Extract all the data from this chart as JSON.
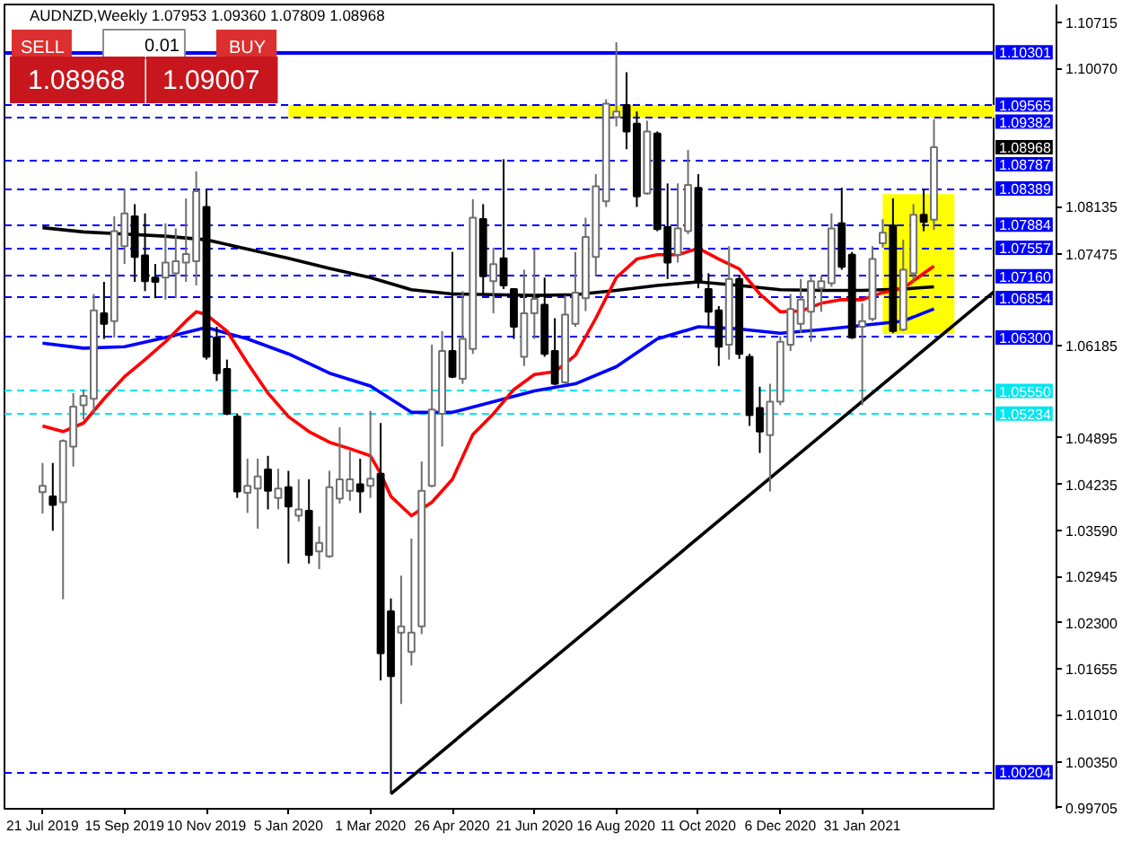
{
  "chart_data": {
    "type": "candlestick",
    "title": "AUDNZD,Weekly 1.07953 1.09360 1.07809 1.08968",
    "x": [
      "2019-07-21",
      "2019-07-28",
      "2019-08-04",
      "2019-08-11",
      "2019-08-18",
      "2019-08-25",
      "2019-09-01",
      "2019-09-08",
      "2019-09-15",
      "2019-09-22",
      "2019-09-29",
      "2019-10-06",
      "2019-10-13",
      "2019-10-20",
      "2019-10-27",
      "2019-11-03",
      "2019-11-10",
      "2019-11-17",
      "2019-11-24",
      "2019-12-01",
      "2019-12-08",
      "2019-12-15",
      "2019-12-22",
      "2019-12-29",
      "2020-01-05",
      "2020-01-12",
      "2020-01-19",
      "2020-01-26",
      "2020-02-02",
      "2020-02-09",
      "2020-02-16",
      "2020-02-23",
      "2020-03-01",
      "2020-03-08",
      "2020-03-15",
      "2020-03-22",
      "2020-03-29",
      "2020-04-05",
      "2020-04-12",
      "2020-04-19",
      "2020-04-26",
      "2020-05-03",
      "2020-05-10",
      "2020-05-17",
      "2020-05-24",
      "2020-05-31",
      "2020-06-07",
      "2020-06-14",
      "2020-06-21",
      "2020-06-28",
      "2020-07-05",
      "2020-07-12",
      "2020-07-19",
      "2020-07-26",
      "2020-08-02",
      "2020-08-09",
      "2020-08-16",
      "2020-08-23",
      "2020-08-30",
      "2020-09-06",
      "2020-09-13",
      "2020-09-20",
      "2020-09-27",
      "2020-10-04",
      "2020-10-11",
      "2020-10-18",
      "2020-10-25",
      "2020-11-01",
      "2020-11-08",
      "2020-11-15",
      "2020-11-22",
      "2020-11-29",
      "2020-12-06",
      "2020-12-13",
      "2020-12-20",
      "2020-12-27",
      "2021-01-03",
      "2021-01-10",
      "2021-01-17",
      "2021-01-24",
      "2021-01-31",
      "2021-02-07",
      "2021-02-14",
      "2021-02-21",
      "2021-02-28",
      "2021-03-07",
      "2021-03-14",
      "2021-03-21"
    ],
    "ohlc": [
      [
        1.0413,
        1.0454,
        1.0383,
        1.0422
      ],
      [
        1.0407,
        1.0454,
        1.0359,
        1.0395
      ],
      [
        1.0399,
        1.0487,
        1.0263,
        1.0485
      ],
      [
        1.0477,
        1.0552,
        1.0449,
        1.0533
      ],
      [
        1.0535,
        1.0557,
        1.0515,
        1.0548
      ],
      [
        1.0544,
        1.0691,
        1.0523,
        1.0668
      ],
      [
        1.0664,
        1.0708,
        1.0628,
        1.0649
      ],
      [
        1.0653,
        1.08,
        1.063,
        1.0779
      ],
      [
        1.0758,
        1.0838,
        1.0733,
        1.0804
      ],
      [
        1.08,
        1.0817,
        1.0708,
        1.0743
      ],
      [
        1.0745,
        1.0804,
        1.0695,
        1.0709
      ],
      [
        1.0714,
        1.0733,
        1.0685,
        1.0708
      ],
      [
        1.0714,
        1.079,
        1.0683,
        1.0735
      ],
      [
        1.072,
        1.0783,
        1.0685,
        1.0737
      ],
      [
        1.0735,
        1.0825,
        1.0708,
        1.0747
      ],
      [
        1.0737,
        1.0863,
        1.0703,
        1.0835
      ],
      [
        1.0813,
        1.0838,
        1.0599,
        1.0603
      ],
      [
        1.063,
        1.0645,
        1.0569,
        1.058
      ],
      [
        1.0586,
        1.0599,
        1.0521,
        1.0523
      ],
      [
        1.0519,
        1.0523,
        1.0405,
        1.0414
      ],
      [
        1.0412,
        1.046,
        1.0384,
        1.0422
      ],
      [
        1.0418,
        1.046,
        1.0362,
        1.0435
      ],
      [
        1.0445,
        1.0464,
        1.0389,
        1.0415
      ],
      [
        1.0405,
        1.0446,
        1.0389,
        1.0418
      ],
      [
        1.042,
        1.0443,
        1.0313,
        1.0393
      ],
      [
        1.038,
        1.0431,
        1.0372,
        1.0389
      ],
      [
        1.0387,
        1.0431,
        1.0313,
        1.0325
      ],
      [
        1.033,
        1.0365,
        1.0305,
        1.0342
      ],
      [
        1.0323,
        1.0443,
        1.0321,
        1.042
      ],
      [
        1.0404,
        1.0504,
        1.0397,
        1.0431
      ],
      [
        1.0415,
        1.0471,
        1.0401,
        1.0431
      ],
      [
        1.0424,
        1.046,
        1.0384,
        1.0414
      ],
      [
        1.0422,
        1.0527,
        1.0405,
        1.0432
      ],
      [
        1.0439,
        1.051,
        1.0149,
        1.0187
      ],
      [
        1.0246,
        1.0264,
        0.999,
        1.0155
      ],
      [
        1.0216,
        1.0296,
        1.0116,
        1.0225
      ],
      [
        1.0189,
        1.0348,
        1.017,
        1.0216
      ],
      [
        1.0225,
        1.0456,
        1.0214,
        1.0415
      ],
      [
        1.0422,
        1.062,
        1.042,
        1.0529
      ],
      [
        1.0523,
        1.0639,
        1.0477,
        1.0611
      ],
      [
        1.0611,
        1.075,
        1.0573,
        1.0575
      ],
      [
        1.0572,
        1.0695,
        1.0565,
        1.0628
      ],
      [
        1.0614,
        1.0824,
        1.0607,
        1.0798
      ],
      [
        1.0796,
        1.0817,
        1.0691,
        1.0716
      ],
      [
        1.0709,
        1.0756,
        1.0664,
        1.0733
      ],
      [
        1.0741,
        1.088,
        1.0698,
        1.0703
      ],
      [
        1.0698,
        1.0699,
        1.0628,
        1.0645
      ],
      [
        1.0603,
        1.0725,
        1.059,
        1.0664
      ],
      [
        1.0664,
        1.0754,
        1.0628,
        1.0684
      ],
      [
        1.0676,
        1.0714,
        1.0603,
        1.0607
      ],
      [
        1.0611,
        1.0657,
        1.0563,
        1.0565
      ],
      [
        1.0567,
        1.0689,
        1.0565,
        1.0662
      ],
      [
        1.0649,
        1.075,
        1.0645,
        1.0693
      ],
      [
        1.0685,
        1.0798,
        1.0667,
        1.0771
      ],
      [
        1.0743,
        1.0859,
        1.0716,
        1.0842
      ],
      [
        1.0821,
        1.0964,
        1.0813,
        1.0958
      ],
      [
        1.0939,
        1.1044,
        1.0926,
        1.0947
      ],
      [
        1.0956,
        1.1002,
        1.0894,
        1.0919
      ],
      [
        1.093,
        1.0947,
        1.0813,
        1.0828
      ],
      [
        1.0832,
        1.0934,
        1.083,
        1.0919
      ],
      [
        1.0916,
        1.0919,
        1.0779,
        1.0782
      ],
      [
        1.0785,
        1.0846,
        1.0712,
        1.0735
      ],
      [
        1.0746,
        1.0846,
        1.0735,
        1.0783
      ],
      [
        1.0779,
        1.0893,
        1.0775,
        1.0844
      ],
      [
        1.084,
        1.0859,
        1.0699,
        1.0708
      ],
      [
        1.0698,
        1.072,
        1.0645,
        1.0666
      ],
      [
        1.0668,
        1.0674,
        1.059,
        1.0617
      ],
      [
        1.062,
        1.0758,
        1.0599,
        1.0712
      ],
      [
        1.0712,
        1.0716,
        1.06,
        1.0607
      ],
      [
        1.0603,
        1.0607,
        1.0506,
        1.0521
      ],
      [
        1.0531,
        1.0561,
        1.0468,
        1.0498
      ],
      [
        1.0493,
        1.0565,
        1.0414,
        1.054
      ],
      [
        1.054,
        1.0632,
        1.0535,
        1.0624
      ],
      [
        1.062,
        1.0691,
        1.0611,
        1.067
      ],
      [
        1.0649,
        1.0712,
        1.0636,
        1.0683
      ],
      [
        1.0666,
        1.0716,
        1.0624,
        1.0709
      ],
      [
        1.0699,
        1.0716,
        1.0666,
        1.0709
      ],
      [
        1.0706,
        1.0804,
        1.0701,
        1.0783
      ],
      [
        1.079,
        1.084,
        1.0725,
        1.0729
      ],
      [
        1.0746,
        1.075,
        1.0628,
        1.063
      ],
      [
        1.0645,
        1.0678,
        1.0535,
        1.0653
      ],
      [
        1.0656,
        1.0758,
        1.0653,
        1.074
      ],
      [
        1.0762,
        1.0796,
        1.0756,
        1.0777
      ],
      [
        1.0787,
        1.0825,
        1.0636,
        1.0639
      ],
      [
        1.0641,
        1.0767,
        1.0639,
        1.0725
      ],
      [
        1.072,
        1.0817,
        1.0708,
        1.0802
      ],
      [
        1.0802,
        1.0838,
        1.0779,
        1.0792
      ],
      [
        1.07953,
        1.0936,
        1.07809,
        1.08968
      ]
    ],
    "colors": [
      "#ffffff",
      "#000000",
      "#ffffff",
      "#ffffff",
      "#ffffff",
      "#ffffff",
      "#000000",
      "#ffffff",
      "#ffffff",
      "#000000",
      "#000000",
      "#000000",
      "#ffffff",
      "#ffffff",
      "#ffffff",
      "#ffffff",
      "#000000",
      "#000000",
      "#000000",
      "#000000",
      "#ffffff",
      "#ffffff",
      "#000000",
      "#ffffff",
      "#000000",
      "#ffffff",
      "#000000",
      "#ffffff",
      "#ffffff",
      "#ffffff",
      "#ffffff",
      "#000000",
      "#ffffff",
      "#000000",
      "#000000",
      "#ffffff",
      "#ffffff",
      "#ffffff",
      "#ffffff",
      "#ffffff",
      "#000000",
      "#ffffff",
      "#ffffff",
      "#000000",
      "#ffffff",
      "#000000",
      "#000000",
      "#ffffff",
      "#ffffff",
      "#000000",
      "#000000",
      "#ffffff",
      "#ffffff",
      "#ffffff",
      "#ffffff",
      "#ffffff",
      "#ffffff",
      "#000000",
      "#000000",
      "#ffffff",
      "#000000",
      "#000000",
      "#ffffff",
      "#ffffff",
      "#000000",
      "#000000",
      "#000000",
      "#ffffff",
      "#000000",
      "#000000",
      "#000000",
      "#ffffff",
      "#ffffff",
      "#ffffff",
      "#ffffff",
      "#ffffff",
      "#ffffff",
      "#ffffff",
      "#000000",
      "#000000",
      "#ffffff",
      "#ffffff",
      "#ffffff",
      "#000000",
      "#ffffff",
      "#ffffff",
      "#000000",
      "#ffffff"
    ],
    "series": [
      {
        "type": "area",
        "color": "#ffff00",
        "x": [
          "2020-01-05",
          "2021-05-02"
        ],
        "values": [
          null,
          null
        ],
        "lower": [
          1.0938,
          1.0938
        ],
        "upper": [
          1.0956,
          1.0956
        ]
      },
      {
        "type": "area",
        "color": "#ffff00",
        "x": [
          "2021-02-14",
          "2021-04-04"
        ],
        "values": [
          null,
          null
        ],
        "lower": [
          1.0635,
          1.0635
        ],
        "upper": [
          1.0831,
          1.0831
        ]
      },
      {
        "type": "line",
        "color": "#000000",
        "x": [
          "2019-07-21",
          "2019-08-18",
          "2019-09-15",
          "2019-10-13",
          "2019-11-10",
          "2019-12-08",
          "2020-01-05",
          "2020-02-02",
          "2020-03-01",
          "2020-03-29",
          "2020-04-26",
          "2020-05-24",
          "2020-06-21",
          "2020-07-19",
          "2020-08-16",
          "2020-09-13",
          "2020-10-11",
          "2020-11-08",
          "2020-12-06",
          "2021-01-03",
          "2021-01-31",
          "2021-02-28",
          "2021-03-21"
        ],
        "values": [
          1.0784,
          1.0778,
          1.0775,
          1.0772,
          1.0767,
          1.0754,
          1.0741,
          1.0727,
          1.0714,
          1.0697,
          1.0691,
          1.069,
          1.0689,
          1.069,
          1.0696,
          1.0703,
          1.0708,
          1.0703,
          1.0697,
          1.0696,
          1.0696,
          1.0698,
          1.0701
        ]
      },
      {
        "type": "line",
        "color": "#0000ff",
        "x": [
          "2019-07-21",
          "2019-08-18",
          "2019-09-15",
          "2019-10-13",
          "2019-11-10",
          "2019-12-08",
          "2020-01-05",
          "2020-02-02",
          "2020-03-01",
          "2020-03-29",
          "2020-04-26",
          "2020-05-24",
          "2020-06-21",
          "2020-07-19",
          "2020-08-16",
          "2020-09-13",
          "2020-10-11",
          "2020-11-08",
          "2020-12-06",
          "2021-01-03",
          "2021-01-31",
          "2021-02-28",
          "2021-03-21"
        ],
        "values": [
          1.0622,
          1.0615,
          1.0617,
          1.063,
          1.0644,
          1.0628,
          1.0607,
          1.058,
          1.0562,
          1.0525,
          1.0525,
          1.054,
          1.0555,
          1.0565,
          1.0589,
          1.0628,
          1.0645,
          1.0642,
          1.0636,
          1.0641,
          1.0647,
          1.0653,
          1.067
        ]
      },
      {
        "type": "line",
        "color": "#ff0000",
        "x": [
          "2019-07-21",
          "2019-08-04",
          "2019-08-18",
          "2019-09-01",
          "2019-09-15",
          "2019-09-29",
          "2019-10-13",
          "2019-10-27",
          "2019-11-03",
          "2019-11-10",
          "2019-11-24",
          "2019-12-08",
          "2019-12-22",
          "2020-01-05",
          "2020-01-19",
          "2020-02-02",
          "2020-02-16",
          "2020-03-01",
          "2020-03-08",
          "2020-03-15",
          "2020-03-29",
          "2020-04-12",
          "2020-04-26",
          "2020-05-10",
          "2020-05-24",
          "2020-06-07",
          "2020-06-21",
          "2020-07-05",
          "2020-07-19",
          "2020-08-02",
          "2020-08-16",
          "2020-08-30",
          "2020-09-13",
          "2020-09-27",
          "2020-10-11",
          "2020-10-25",
          "2020-11-08",
          "2020-11-22",
          "2020-12-06",
          "2020-12-20",
          "2021-01-03",
          "2021-01-17",
          "2021-01-31",
          "2021-02-14",
          "2021-02-28",
          "2021-03-14",
          "2021-03-21"
        ],
        "values": [
          1.0506,
          1.0498,
          1.051,
          1.0544,
          1.0575,
          1.0599,
          1.0624,
          1.0653,
          1.0666,
          1.0662,
          1.0639,
          1.0594,
          1.0552,
          1.0519,
          1.0498,
          1.0483,
          1.0474,
          1.0464,
          1.0439,
          1.0407,
          1.038,
          1.0399,
          1.0431,
          1.0494,
          1.0523,
          1.0557,
          1.0578,
          1.0582,
          1.0605,
          1.0657,
          1.0714,
          1.074,
          1.0746,
          1.0746,
          1.0755,
          1.074,
          1.0726,
          1.0691,
          1.0666,
          1.0667,
          1.0678,
          1.0683,
          1.0683,
          1.0693,
          1.0699,
          1.072,
          1.073
        ]
      },
      {
        "type": "line",
        "color": "#000000",
        "x": [
          "2020-03-15",
          "2021-05-02"
        ],
        "values": [
          0.999,
          1.0696
        ]
      }
    ],
    "ref_lines": [
      {
        "axis": "y",
        "value": 1.10301,
        "label": "1.10301",
        "color": "#0000ff",
        "line_style": "solid"
      },
      {
        "axis": "y",
        "value": 1.09565,
        "label": "1.09565",
        "color": "#0000ff",
        "line_style": "dashed"
      },
      {
        "axis": "y",
        "value": 1.09382,
        "label": "1.09382",
        "color": "#0000ff",
        "line_style": "dashed"
      },
      {
        "axis": "y",
        "value": 1.08787,
        "label": "1.08787",
        "color": "#0000ff",
        "line_style": "dashed"
      },
      {
        "axis": "y",
        "value": 1.08389,
        "label": "1.08389",
        "color": "#0000ff",
        "line_style": "dashed"
      },
      {
        "axis": "y",
        "value": 1.07884,
        "label": "1.07884",
        "color": "#0000ff",
        "line_style": "dashed"
      },
      {
        "axis": "y",
        "value": 1.07557,
        "label": "1.07557",
        "color": "#0000ff",
        "line_style": "dashed"
      },
      {
        "axis": "y",
        "value": 1.0716,
        "label": "1.07160",
        "color": "#0000ff",
        "line_style": "dashed"
      },
      {
        "axis": "y",
        "value": 1.06854,
        "label": "1.06854",
        "color": "#0000ff",
        "line_style": "dashed"
      },
      {
        "axis": "y",
        "value": 1.063,
        "label": "1.06300",
        "color": "#0000ff",
        "line_style": "dashed"
      },
      {
        "axis": "y",
        "value": 1.0555,
        "label": "1.05550",
        "color": "#00e5ee",
        "line_style": "dashed"
      },
      {
        "axis": "y",
        "value": 1.05234,
        "label": "1.05234",
        "color": "#00e5ee",
        "line_style": "dashed"
      },
      {
        "axis": "y",
        "value": 1.00204,
        "label": "1.00204",
        "color": "#0000ff",
        "line_style": "dashed"
      }
    ],
    "annotations": [
      "SELL",
      "0.01",
      "BUY",
      "1.08968",
      "1.09007",
      "1.08968"
    ],
    "xlim": [
      "2019-06-25",
      "2021-05-02"
    ],
    "xticks": [
      {
        "value": "2019-07-21",
        "label": "21 Jul 2019"
      },
      {
        "value": "2019-09-15",
        "label": "15 Sep 2019"
      },
      {
        "value": "2019-11-10",
        "label": "10 Nov 2019"
      },
      {
        "value": "2020-01-05",
        "label": "5 Jan 2020"
      },
      {
        "value": "2020-03-01",
        "label": "1 Mar 2020"
      },
      {
        "value": "2020-04-26",
        "label": "26 Apr 2020"
      },
      {
        "value": "2020-06-21",
        "label": "21 Jun 2020"
      },
      {
        "value": "2020-08-16",
        "label": "16 Aug 2020"
      },
      {
        "value": "2020-10-11",
        "label": "11 Oct 2020"
      },
      {
        "value": "2020-12-06",
        "label": "6 Dec 2020"
      },
      {
        "value": "2021-01-31",
        "label": "31 Jan 2021"
      }
    ],
    "ylim": [
      0.9969,
      1.1097
    ],
    "yticks": [
      1.10715,
      {
        "value": 1.1007,
        "label": "1.10070"
      },
      1.08135,
      1.07475,
      1.06185,
      1.04895,
      1.04235,
      {
        "value": 1.0359,
        "label": "1.03590"
      },
      1.02945,
      {
        "value": 1.023,
        "label": "1.02300"
      },
      1.01655,
      {
        "value": 1.0101,
        "label": "1.01010"
      },
      {
        "value": 1.0035,
        "label": "1.00350"
      },
      0.99705
    ]
  }
}
